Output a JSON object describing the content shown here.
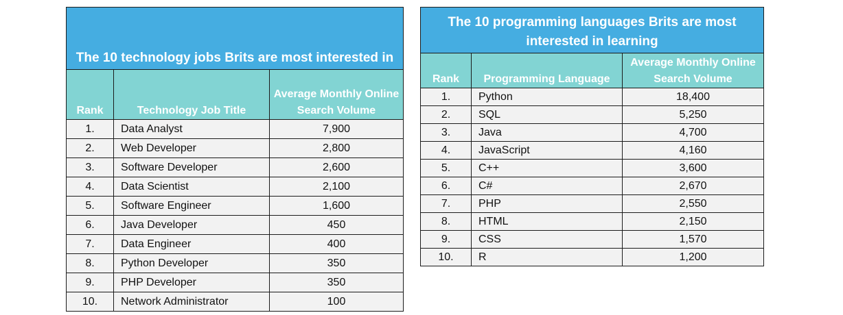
{
  "jobs_table": {
    "title": "The 10 technology jobs Brits are most interested in",
    "headers": [
      "Rank",
      "Technology Job Title",
      "Average Monthly Online Search Volume"
    ],
    "rows": [
      [
        "1.",
        "Data Analyst",
        "7,900"
      ],
      [
        "2.",
        "Web Developer",
        "2,800"
      ],
      [
        "3.",
        "Software Developer",
        "2,600"
      ],
      [
        "4.",
        "Data Scientist",
        "2,100"
      ],
      [
        "5.",
        "Software Engineer",
        "1,600"
      ],
      [
        "6.",
        "Java Developer",
        "450"
      ],
      [
        "7.",
        "Data Engineer",
        "400"
      ],
      [
        "8.",
        "Python Developer",
        "350"
      ],
      [
        "9.",
        "PHP Developer",
        "350"
      ],
      [
        "10.",
        "Network Administrator",
        "100"
      ]
    ]
  },
  "languages_table": {
    "title": "The 10 programming languages Brits are most interested in learning",
    "headers": [
      "Rank",
      "Programming Language",
      "Average Monthly Online Search Volume"
    ],
    "rows": [
      [
        "1.",
        "Python",
        "18,400"
      ],
      [
        "2.",
        "SQL",
        "5,250"
      ],
      [
        "3.",
        "Java",
        "4,700"
      ],
      [
        "4.",
        "JavaScript",
        "4,160"
      ],
      [
        "5.",
        "C++",
        "3,600"
      ],
      [
        "6.",
        "C#",
        "2,670"
      ],
      [
        "7.",
        "PHP",
        "2,550"
      ],
      [
        "8.",
        "HTML",
        "2,150"
      ],
      [
        "9.",
        "CSS",
        "1,570"
      ],
      [
        "10.",
        "R",
        "1,200"
      ]
    ]
  },
  "colors": {
    "title_bg": "#45ade1",
    "header_bg": "#82d4d3",
    "row_bg": "#f2f2f2"
  }
}
